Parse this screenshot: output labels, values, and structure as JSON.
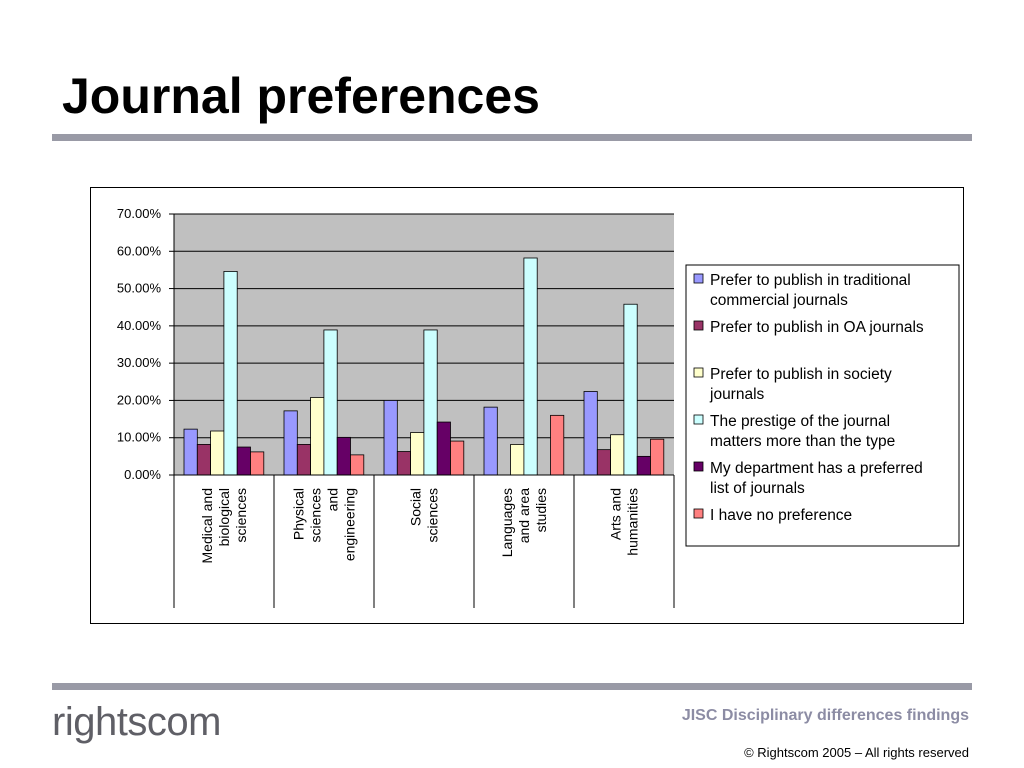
{
  "slide": {
    "title": "Journal preferences",
    "footer_title": "JISC Disciplinary differences findings",
    "footer_copyright": "© Rightscom 2005 – All rights reserved",
    "logo": {
      "part1": "rights",
      "part2": "com",
      "accent_color": "#b3182e"
    }
  },
  "chart_data": {
    "type": "bar",
    "categories": [
      "Medical and biological sciences",
      "Physical sciences and engineering",
      "Social sciences",
      "Languages and area studies",
      "Arts and humanities"
    ],
    "category_lines": [
      [
        "Medical and",
        "biological",
        "sciences"
      ],
      [
        "Physical",
        "sciences",
        "and",
        "engineering"
      ],
      [
        "Social",
        "sciences"
      ],
      [
        "Languages",
        "and area",
        "studies"
      ],
      [
        "Arts and",
        "humanities"
      ]
    ],
    "series": [
      {
        "name": "Prefer to publish in traditional commercial journals",
        "legend_lines": [
          "Prefer to publish in traditional",
          "commercial journals"
        ],
        "color": "#9999ff",
        "values": [
          12.3,
          17.2,
          20.0,
          18.2,
          22.4
        ]
      },
      {
        "name": "Prefer to publish in OA journals",
        "legend_lines": [
          "Prefer to publish in OA journals"
        ],
        "color": "#993366",
        "values": [
          8.2,
          8.2,
          6.3,
          0,
          6.8
        ]
      },
      {
        "name": "Prefer to publish in society journals",
        "legend_lines": [
          "Prefer to publish in society",
          "journals"
        ],
        "color": "#ffffcc",
        "values": [
          11.8,
          20.8,
          11.4,
          8.2,
          10.8
        ]
      },
      {
        "name": "The prestige of the journal matters more than the type",
        "legend_lines": [
          "The prestige of the journal",
          "matters more than the type"
        ],
        "color": "#ccffff",
        "values": [
          54.6,
          38.9,
          38.9,
          58.2,
          45.8
        ]
      },
      {
        "name": "My department has a preferred list of journals",
        "legend_lines": [
          "My department has a preferred",
          "list of journals"
        ],
        "color": "#660066",
        "values": [
          7.5,
          10.1,
          14.2,
          0,
          5.0
        ]
      },
      {
        "name": "I have no preference",
        "legend_lines": [
          "I have no preference"
        ],
        "color": "#ff8080",
        "values": [
          6.2,
          5.4,
          9.1,
          16.0,
          9.6
        ]
      }
    ],
    "yticks": [
      "0.00%",
      "10.00%",
      "20.00%",
      "30.00%",
      "40.00%",
      "50.00%",
      "60.00%",
      "70.00%"
    ],
    "ylim": [
      0,
      70
    ],
    "plot_background": "#c0c0c0",
    "grid": true,
    "legend_position": "right"
  }
}
